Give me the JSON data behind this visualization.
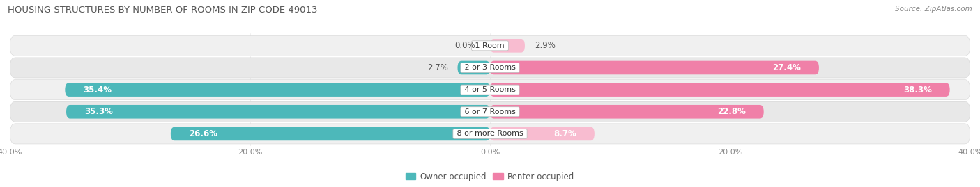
{
  "title": "HOUSING STRUCTURES BY NUMBER OF ROOMS IN ZIP CODE 49013",
  "source": "Source: ZipAtlas.com",
  "categories": [
    "1 Room",
    "2 or 3 Rooms",
    "4 or 5 Rooms",
    "6 or 7 Rooms",
    "8 or more Rooms"
  ],
  "owner_values": [
    0.0,
    2.7,
    35.4,
    35.3,
    26.6
  ],
  "renter_values": [
    2.9,
    27.4,
    38.3,
    22.8,
    8.7
  ],
  "axis_max": 40.0,
  "owner_color": "#4db8ba",
  "renter_color": "#f080a8",
  "renter_color_light": "#f8bcd0",
  "row_bg_even": "#f0f0f0",
  "row_bg_odd": "#e8e8e8",
  "bar_height": 0.62,
  "title_fontsize": 9.5,
  "label_fontsize": 8.5,
  "axis_label_fontsize": 8,
  "legend_fontsize": 8.5,
  "category_fontsize": 8
}
